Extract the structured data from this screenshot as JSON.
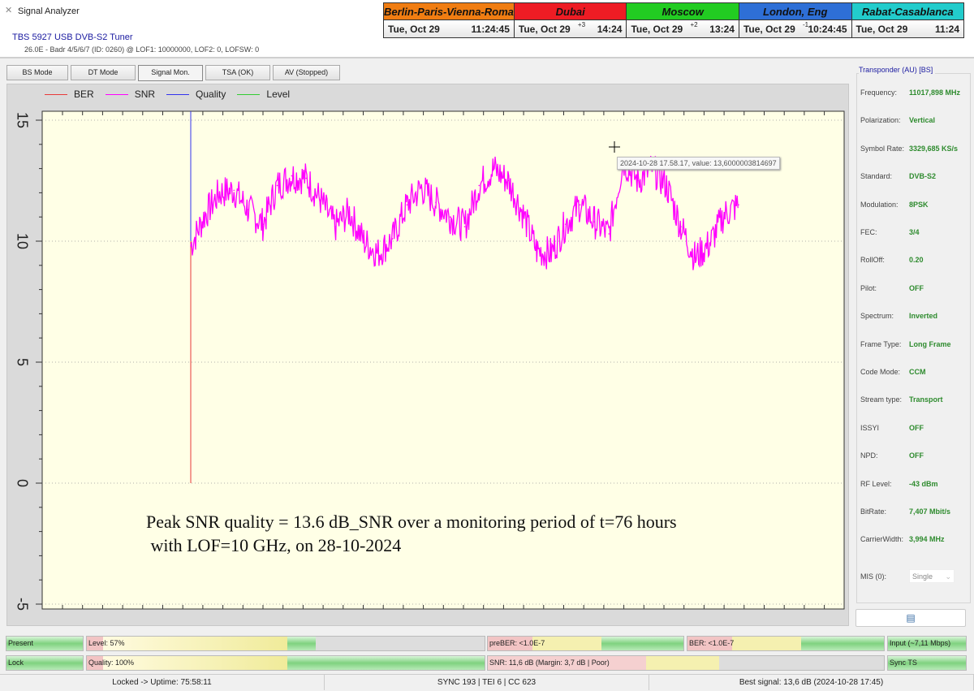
{
  "window": {
    "title": "Signal Analyzer"
  },
  "tuner": {
    "name": "TBS 5927 USB DVB-S2 Tuner",
    "info": "26.0E - Badr 4/5/6/7 (ID: 0260) @ LOF1: 10000000, LOF2: 0, LOFSW: 0"
  },
  "clocks": [
    {
      "city": "Berlin-Paris-Vienna-Roma",
      "date": "Tue, Oct 29",
      "time": "11:24:45",
      "offset": "",
      "color": "#f07d12"
    },
    {
      "city": "Dubai",
      "date": "Tue, Oct 29",
      "time": "14:24",
      "offset": "+3",
      "color": "#ee1c24"
    },
    {
      "city": "Moscow",
      "date": "Tue, Oct 29",
      "time": "13:24",
      "offset": "+2",
      "color": "#22cc22"
    },
    {
      "city": "London, Eng",
      "date": "Tue, Oct 29",
      "time": "10:24:45",
      "offset": "-1",
      "color": "#2e6fd6"
    },
    {
      "city": "Rabat-Casablanca",
      "date": "Tue, Oct 29",
      "time": "11:24",
      "offset": "",
      "color": "#22cccc"
    }
  ],
  "tabs": [
    {
      "label": "BS Mode"
    },
    {
      "label": "DT Mode"
    },
    {
      "label": "Signal Mon.",
      "active": true
    },
    {
      "label": "TSA (OK)"
    },
    {
      "label": "AV (Stopped)"
    }
  ],
  "chart_data": {
    "type": "line",
    "legend": [
      {
        "name": "BER",
        "color": "#e83a3a"
      },
      {
        "name": "SNR",
        "color": "#ff00ff"
      },
      {
        "name": "Quality",
        "color": "#3333ee"
      },
      {
        "name": "Level",
        "color": "#33cc33"
      }
    ],
    "legend_placement": "top-left",
    "ylim": [
      -5.2,
      15.4
    ],
    "yticks": [
      "15",
      "10",
      "5",
      "0",
      "-5"
    ],
    "grid": true,
    "series": [
      {
        "name": "SNR",
        "values": [
          9.8,
          11.1,
          12.0,
          12.1,
          11.3,
          10.7,
          12.3,
          12.7,
          12.6,
          11.7,
          10.6,
          11.2,
          10.0,
          9.5,
          10.1,
          11.5,
          12.2,
          11.6,
          11.0,
          10.6,
          12.3,
          13.0,
          12.5,
          11.2,
          9.6,
          9.5,
          10.7,
          11.5,
          10.8,
          10.3,
          13.3,
          12.5,
          13.0,
          12.3,
          10.6,
          9.3,
          9.9,
          11.1,
          11.5
        ]
      }
    ],
    "tooltip": "2024-10-28 17.58.17, value: 13,6000003814697",
    "annotation": [
      "Peak SNR quality = 13.6 dB_SNR over a monitoring period of t=76 hours",
      " with LOF=10 GHz, on 28-10-2024"
    ]
  },
  "transponder": {
    "title": "Transponder (AU) [BS]",
    "rows": [
      {
        "label": "Frequency:",
        "value": "11017,898 MHz"
      },
      {
        "label": "Polarization:",
        "value": "Vertical"
      },
      {
        "label": "Symbol Rate:",
        "value": "3329,685 KS/s"
      },
      {
        "label": "Standard:",
        "value": "DVB-S2"
      },
      {
        "label": "Modulation:",
        "value": "8PSK"
      },
      {
        "label": "FEC:",
        "value": "3/4"
      },
      {
        "label": "RollOff:",
        "value": "0.20"
      },
      {
        "label": "Pilot:",
        "value": "OFF"
      },
      {
        "label": "Spectrum:",
        "value": "Inverted"
      },
      {
        "label": "Frame Type:",
        "value": "Long Frame"
      },
      {
        "label": "Code Mode:",
        "value": "CCM"
      },
      {
        "label": "Stream type:",
        "value": "Transport"
      },
      {
        "label": "ISSYI",
        "value": "OFF"
      },
      {
        "label": "NPD:",
        "value": "OFF"
      },
      {
        "label": "RF Level:",
        "value": "-43 dBm"
      },
      {
        "label": "BitRate:",
        "value": "7,407 Mbit/s"
      },
      {
        "label": "CarrierWidth:",
        "value": "3,994 MHz"
      }
    ],
    "mis_label": "MIS (0):",
    "mis_value": "Single"
  },
  "indicators": {
    "present": "Present",
    "lock": "Lock",
    "level": "Level: 57%",
    "level_pct": 57,
    "quality": "Quality: 100%",
    "quality_pct": 100,
    "preber": "preBER: <1.0E-7",
    "ber": "BER: <1.0E-7",
    "snr": "SNR: 11,6 dB (Margin: 3,7 dB | Poor)",
    "input": "Input (~7,11 Mbps)",
    "sync": "Sync TS"
  },
  "status": {
    "uptime": "Locked -> Uptime: 75:58:11",
    "sync": "SYNC 193 | TEI 6 | CC 623",
    "best": "Best signal: 13,6 dB (2024-10-28 17:45)"
  }
}
